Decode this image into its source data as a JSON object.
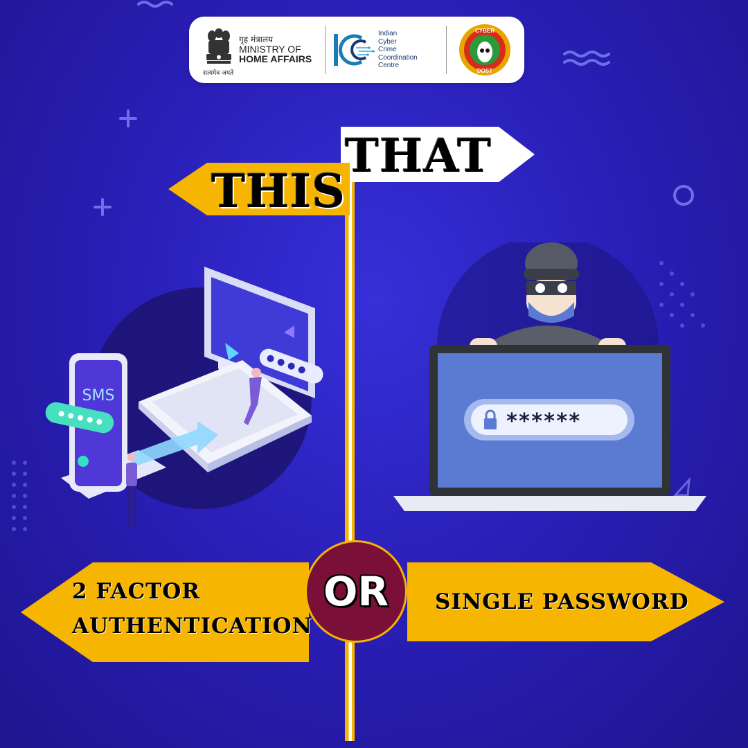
{
  "header": {
    "ministry": {
      "hindi": "गृह मंत्रालय",
      "line1": "MINISTRY OF",
      "line2": "HOME AFFAIRS",
      "motto": "सत्यमेव जयते"
    },
    "i4c": {
      "lines": [
        "Indian",
        "Cyber",
        "Crime",
        "Coordination",
        "Centre"
      ]
    },
    "badge": {
      "top": "CYBER",
      "bottom": "DOST"
    }
  },
  "signs": {
    "this_label": "THIS",
    "that_label": "THAT",
    "left_line1": "2 FACTOR",
    "left_line2": "AUTHENTICATION",
    "right_label": "SINGLE PASSWORD",
    "or_label": "OR"
  },
  "illustration_left": {
    "phone_text": "SMS",
    "password_mask": "****"
  },
  "illustration_right": {
    "password_mask": "******"
  },
  "colors": {
    "background": "#2a1fb8",
    "sign_yellow": "#f6b500",
    "sign_white": "#ffffff",
    "or_circle": "#7a0f37"
  }
}
